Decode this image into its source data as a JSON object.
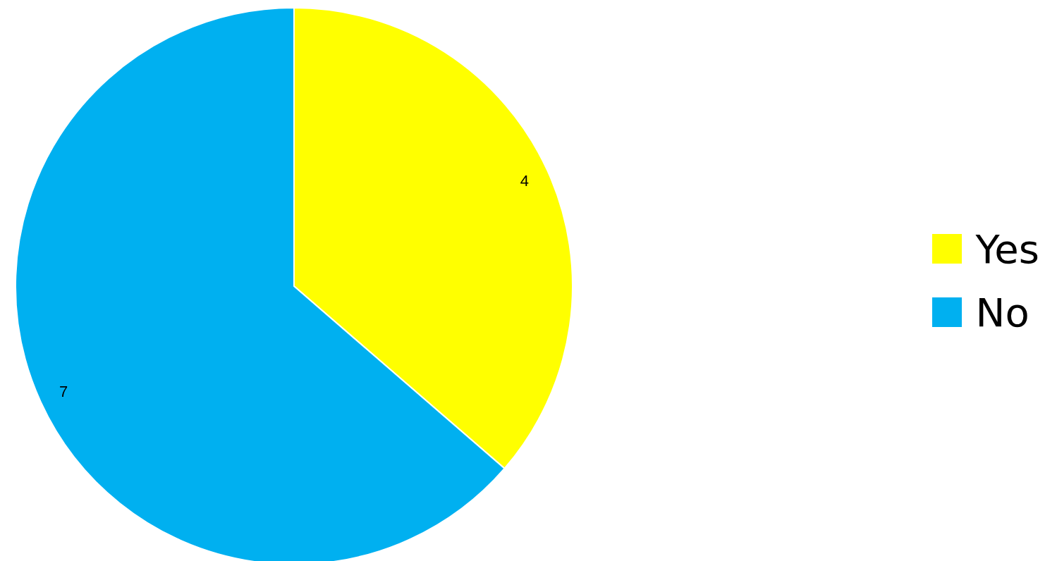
{
  "chart_data": {
    "type": "pie",
    "categories": [
      "Yes",
      "No"
    ],
    "values": [
      4,
      7
    ],
    "colors": [
      "#ffff00",
      "#00b0f0"
    ],
    "data_labels": true,
    "legend": "right"
  }
}
